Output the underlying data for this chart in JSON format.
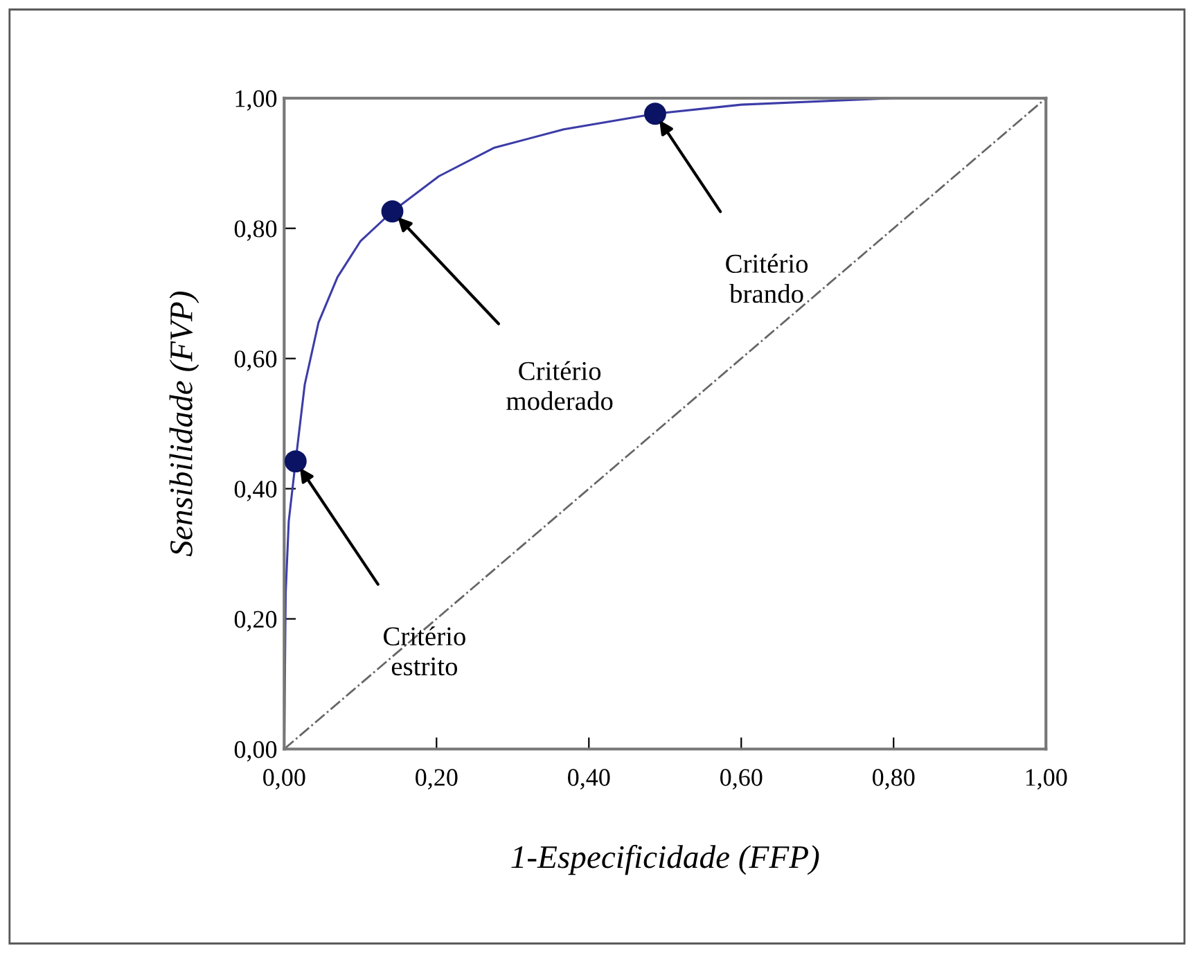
{
  "chart_data": {
    "type": "line",
    "xlabel": "1-Especificidade (FFP)",
    "ylabel": "Sensibilidade (FVP)",
    "series": [
      {
        "type": "line",
        "color": "#3c3ca8",
        "x": [
          0,
          0.002,
          0.006,
          0.015,
          0.027,
          0.045,
          0.07,
          0.1,
          0.142,
          0.203,
          0.276,
          0.367,
          0.487,
          0.6,
          0.8,
          1.0
        ],
        "values": [
          0,
          0.24,
          0.35,
          0.442,
          0.56,
          0.655,
          0.725,
          0.78,
          0.826,
          0.88,
          0.924,
          0.952,
          0.976,
          0.99,
          1.0,
          1.0
        ],
        "line_style": "solid"
      },
      {
        "type": "scatter",
        "color": "#0b1464",
        "x": [
          0.015,
          0.142,
          0.487
        ],
        "values": [
          0.442,
          0.826,
          0.976
        ],
        "marker": "circle"
      },
      {
        "color": "#666666",
        "x": [
          0,
          1
        ],
        "values": [
          0,
          1
        ],
        "line_style": "dashdot"
      }
    ],
    "annotations": [
      "Critério\nestrito",
      "Critério\nmoderado",
      "Critério\nbrando"
    ],
    "xlim": [
      0,
      1
    ],
    "ylim": [
      0,
      1
    ],
    "xticks": [
      {
        "value": 0,
        "label": "0,00"
      },
      {
        "value": 0.2,
        "label": "0,20"
      },
      {
        "value": 0.4,
        "label": "0,40"
      },
      {
        "value": 0.6,
        "label": "0,60"
      },
      {
        "value": 0.8,
        "label": "0,80"
      },
      {
        "value": 1,
        "label": "1,00"
      }
    ],
    "yticks": [
      {
        "value": 0,
        "label": "0,00"
      },
      {
        "value": 0.2,
        "label": "0,20"
      },
      {
        "value": 0.4,
        "label": "0,40"
      },
      {
        "value": 0.6,
        "label": "0,60"
      },
      {
        "value": 0.8,
        "label": "0,80"
      },
      {
        "value": 1,
        "label": "1,00"
      }
    ],
    "grid": false,
    "legend": false
  }
}
